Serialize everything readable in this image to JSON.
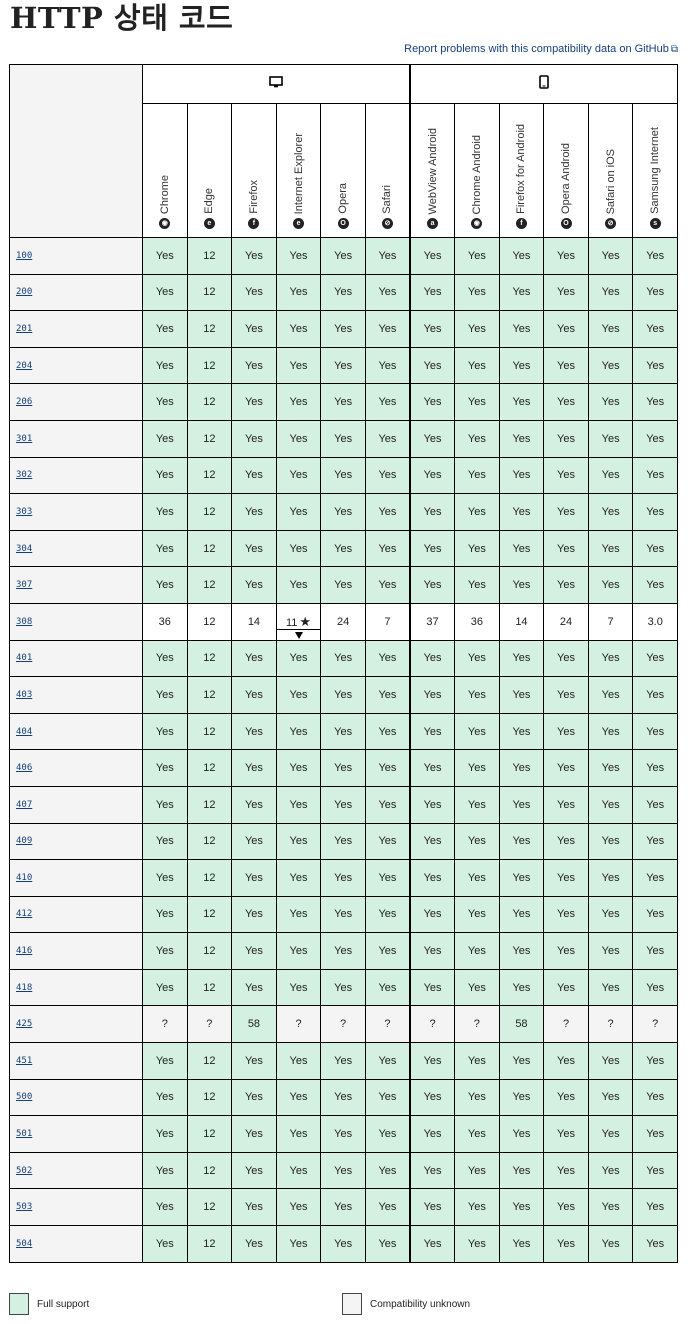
{
  "title": "HTTP 상태 코드",
  "report_link": "Report problems with this compatibility data on GitHub",
  "platforms": [
    {
      "name": "desktop",
      "icon": "monitor-icon"
    },
    {
      "name": "mobile",
      "icon": "phone-icon"
    }
  ],
  "browsers": [
    {
      "name": "Chrome",
      "icon": "chrome-icon",
      "platform": "desktop"
    },
    {
      "name": "Edge",
      "icon": "edge-icon",
      "platform": "desktop"
    },
    {
      "name": "Firefox",
      "icon": "firefox-icon",
      "platform": "desktop"
    },
    {
      "name": "Internet Explorer",
      "icon": "ie-icon",
      "platform": "desktop"
    },
    {
      "name": "Opera",
      "icon": "opera-icon",
      "platform": "desktop"
    },
    {
      "name": "Safari",
      "icon": "safari-icon",
      "platform": "desktop"
    },
    {
      "name": "WebView Android",
      "icon": "android-icon",
      "platform": "mobile"
    },
    {
      "name": "Chrome Android",
      "icon": "chrome-icon",
      "platform": "mobile"
    },
    {
      "name": "Firefox for Android",
      "icon": "firefox-icon",
      "platform": "mobile"
    },
    {
      "name": "Opera Android",
      "icon": "opera-icon",
      "platform": "mobile"
    },
    {
      "name": "Safari on iOS",
      "icon": "safari-icon",
      "platform": "mobile"
    },
    {
      "name": "Samsung Internet",
      "icon": "samsung-icon",
      "platform": "mobile"
    }
  ],
  "rows": [
    {
      "code": "100",
      "values": [
        "Yes",
        "12",
        "Yes",
        "Yes",
        "Yes",
        "Yes",
        "Yes",
        "Yes",
        "Yes",
        "Yes",
        "Yes",
        "Yes"
      ]
    },
    {
      "code": "200",
      "values": [
        "Yes",
        "12",
        "Yes",
        "Yes",
        "Yes",
        "Yes",
        "Yes",
        "Yes",
        "Yes",
        "Yes",
        "Yes",
        "Yes"
      ]
    },
    {
      "code": "201",
      "values": [
        "Yes",
        "12",
        "Yes",
        "Yes",
        "Yes",
        "Yes",
        "Yes",
        "Yes",
        "Yes",
        "Yes",
        "Yes",
        "Yes"
      ]
    },
    {
      "code": "204",
      "values": [
        "Yes",
        "12",
        "Yes",
        "Yes",
        "Yes",
        "Yes",
        "Yes",
        "Yes",
        "Yes",
        "Yes",
        "Yes",
        "Yes"
      ]
    },
    {
      "code": "206",
      "values": [
        "Yes",
        "12",
        "Yes",
        "Yes",
        "Yes",
        "Yes",
        "Yes",
        "Yes",
        "Yes",
        "Yes",
        "Yes",
        "Yes"
      ]
    },
    {
      "code": "301",
      "values": [
        "Yes",
        "12",
        "Yes",
        "Yes",
        "Yes",
        "Yes",
        "Yes",
        "Yes",
        "Yes",
        "Yes",
        "Yes",
        "Yes"
      ]
    },
    {
      "code": "302",
      "values": [
        "Yes",
        "12",
        "Yes",
        "Yes",
        "Yes",
        "Yes",
        "Yes",
        "Yes",
        "Yes",
        "Yes",
        "Yes",
        "Yes"
      ]
    },
    {
      "code": "303",
      "values": [
        "Yes",
        "12",
        "Yes",
        "Yes",
        "Yes",
        "Yes",
        "Yes",
        "Yes",
        "Yes",
        "Yes",
        "Yes",
        "Yes"
      ]
    },
    {
      "code": "304",
      "values": [
        "Yes",
        "12",
        "Yes",
        "Yes",
        "Yes",
        "Yes",
        "Yes",
        "Yes",
        "Yes",
        "Yes",
        "Yes",
        "Yes"
      ]
    },
    {
      "code": "307",
      "values": [
        "Yes",
        "12",
        "Yes",
        "Yes",
        "Yes",
        "Yes",
        "Yes",
        "Yes",
        "Yes",
        "Yes",
        "Yes",
        "Yes"
      ]
    },
    {
      "code": "308",
      "values": [
        "36",
        "12",
        "14",
        "11",
        "24",
        "7",
        "37",
        "36",
        "14",
        "24",
        "7",
        "3.0"
      ],
      "flag_col": 3,
      "unknown_cols": [],
      "neutral": true
    },
    {
      "code": "401",
      "values": [
        "Yes",
        "12",
        "Yes",
        "Yes",
        "Yes",
        "Yes",
        "Yes",
        "Yes",
        "Yes",
        "Yes",
        "Yes",
        "Yes"
      ]
    },
    {
      "code": "403",
      "values": [
        "Yes",
        "12",
        "Yes",
        "Yes",
        "Yes",
        "Yes",
        "Yes",
        "Yes",
        "Yes",
        "Yes",
        "Yes",
        "Yes"
      ]
    },
    {
      "code": "404",
      "values": [
        "Yes",
        "12",
        "Yes",
        "Yes",
        "Yes",
        "Yes",
        "Yes",
        "Yes",
        "Yes",
        "Yes",
        "Yes",
        "Yes"
      ]
    },
    {
      "code": "406",
      "values": [
        "Yes",
        "12",
        "Yes",
        "Yes",
        "Yes",
        "Yes",
        "Yes",
        "Yes",
        "Yes",
        "Yes",
        "Yes",
        "Yes"
      ]
    },
    {
      "code": "407",
      "values": [
        "Yes",
        "12",
        "Yes",
        "Yes",
        "Yes",
        "Yes",
        "Yes",
        "Yes",
        "Yes",
        "Yes",
        "Yes",
        "Yes"
      ]
    },
    {
      "code": "409",
      "values": [
        "Yes",
        "12",
        "Yes",
        "Yes",
        "Yes",
        "Yes",
        "Yes",
        "Yes",
        "Yes",
        "Yes",
        "Yes",
        "Yes"
      ]
    },
    {
      "code": "410",
      "values": [
        "Yes",
        "12",
        "Yes",
        "Yes",
        "Yes",
        "Yes",
        "Yes",
        "Yes",
        "Yes",
        "Yes",
        "Yes",
        "Yes"
      ]
    },
    {
      "code": "412",
      "values": [
        "Yes",
        "12",
        "Yes",
        "Yes",
        "Yes",
        "Yes",
        "Yes",
        "Yes",
        "Yes",
        "Yes",
        "Yes",
        "Yes"
      ]
    },
    {
      "code": "416",
      "values": [
        "Yes",
        "12",
        "Yes",
        "Yes",
        "Yes",
        "Yes",
        "Yes",
        "Yes",
        "Yes",
        "Yes",
        "Yes",
        "Yes"
      ]
    },
    {
      "code": "418",
      "values": [
        "Yes",
        "12",
        "Yes",
        "Yes",
        "Yes",
        "Yes",
        "Yes",
        "Yes",
        "Yes",
        "Yes",
        "Yes",
        "Yes"
      ]
    },
    {
      "code": "425",
      "values": [
        "?",
        "?",
        "58",
        "?",
        "?",
        "?",
        "?",
        "?",
        "58",
        "?",
        "?",
        "?"
      ]
    },
    {
      "code": "451",
      "values": [
        "Yes",
        "12",
        "Yes",
        "Yes",
        "Yes",
        "Yes",
        "Yes",
        "Yes",
        "Yes",
        "Yes",
        "Yes",
        "Yes"
      ]
    },
    {
      "code": "500",
      "values": [
        "Yes",
        "12",
        "Yes",
        "Yes",
        "Yes",
        "Yes",
        "Yes",
        "Yes",
        "Yes",
        "Yes",
        "Yes",
        "Yes"
      ]
    },
    {
      "code": "501",
      "values": [
        "Yes",
        "12",
        "Yes",
        "Yes",
        "Yes",
        "Yes",
        "Yes",
        "Yes",
        "Yes",
        "Yes",
        "Yes",
        "Yes"
      ]
    },
    {
      "code": "502",
      "values": [
        "Yes",
        "12",
        "Yes",
        "Yes",
        "Yes",
        "Yes",
        "Yes",
        "Yes",
        "Yes",
        "Yes",
        "Yes",
        "Yes"
      ]
    },
    {
      "code": "503",
      "values": [
        "Yes",
        "12",
        "Yes",
        "Yes",
        "Yes",
        "Yes",
        "Yes",
        "Yes",
        "Yes",
        "Yes",
        "Yes",
        "Yes"
      ]
    },
    {
      "code": "504",
      "values": [
        "Yes",
        "12",
        "Yes",
        "Yes",
        "Yes",
        "Yes",
        "Yes",
        "Yes",
        "Yes",
        "Yes",
        "Yes",
        "Yes"
      ]
    }
  ],
  "legend": {
    "full_support": "Full support",
    "unknown": "Compatibility unknown"
  },
  "colors": {
    "full_support": "#d4f0e0",
    "unknown": "#f4f4f4",
    "link": "#15417a"
  }
}
